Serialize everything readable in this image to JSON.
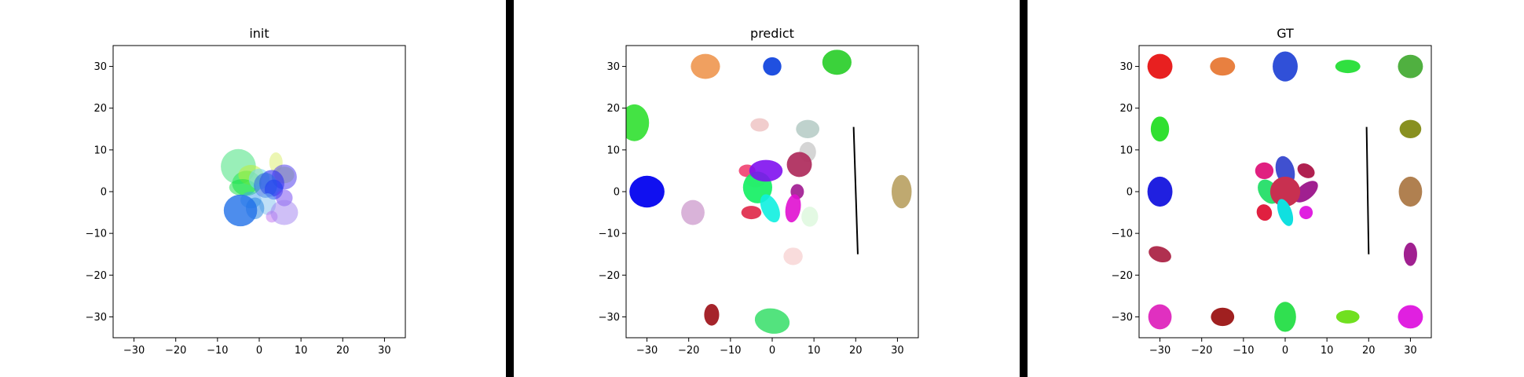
{
  "figure": {
    "separator_color": "#000000"
  },
  "chart_data": [
    {
      "type": "scatter",
      "title": "init",
      "xlim": [
        -35,
        35
      ],
      "ylim": [
        -35,
        35
      ],
      "xticks": [
        -30,
        -20,
        -10,
        0,
        10,
        20,
        30
      ],
      "yticks": [
        -30,
        -20,
        -10,
        0,
        10,
        20,
        30
      ],
      "grid": false,
      "ellipses": [
        {
          "cx": -5,
          "cy": 6,
          "rx": 4.2,
          "ry": 4.2,
          "angle": 0,
          "color": "#6ee89a",
          "opacity": 0.7
        },
        {
          "cx": -3,
          "cy": 2,
          "rx": 3.5,
          "ry": 3,
          "angle": 0,
          "color": "#2ee85a",
          "opacity": 0.6
        },
        {
          "cx": -2,
          "cy": 4,
          "rx": 3,
          "ry": 2.4,
          "angle": 0,
          "color": "#c0f030",
          "opacity": 0.5
        },
        {
          "cx": -4,
          "cy": 1,
          "rx": 3.2,
          "ry": 2,
          "angle": 0,
          "color": "#10e040",
          "opacity": 0.5
        },
        {
          "cx": 0,
          "cy": 3,
          "rx": 2.5,
          "ry": 2.5,
          "angle": 0,
          "color": "#7ad8f0",
          "opacity": 0.6
        },
        {
          "cx": 4,
          "cy": 7,
          "rx": 1.6,
          "ry": 2.4,
          "angle": 0,
          "color": "#e0f080",
          "opacity": 0.6
        },
        {
          "cx": 6,
          "cy": 4,
          "rx": 2.4,
          "ry": 2,
          "angle": 0,
          "color": "#c0f060",
          "opacity": 0.6
        },
        {
          "cx": 6,
          "cy": 3.5,
          "rx": 3,
          "ry": 3,
          "angle": 0,
          "color": "#6050f0",
          "opacity": 0.6
        },
        {
          "cx": 3,
          "cy": 2,
          "rx": 3,
          "ry": 3.2,
          "angle": 0,
          "color": "#3030f0",
          "opacity": 0.6
        },
        {
          "cx": 1.5,
          "cy": 1.5,
          "rx": 2.8,
          "ry": 3,
          "angle": 0,
          "color": "#3070e0",
          "opacity": 0.6
        },
        {
          "cx": 3.5,
          "cy": 0.5,
          "rx": 2.2,
          "ry": 2.4,
          "angle": 0,
          "color": "#2040f0",
          "opacity": 0.6
        },
        {
          "cx": 6,
          "cy": -1.5,
          "rx": 2,
          "ry": 2,
          "angle": 0,
          "color": "#7040f0",
          "opacity": 0.5
        },
        {
          "cx": -2,
          "cy": -2,
          "rx": 2.5,
          "ry": 2,
          "angle": 0,
          "color": "#40a0f0",
          "opacity": 0.5
        },
        {
          "cx": 2,
          "cy": -3,
          "rx": 2,
          "ry": 2.6,
          "angle": 0,
          "color": "#80c0f0",
          "opacity": 0.5
        },
        {
          "cx": 3,
          "cy": -6,
          "rx": 1.4,
          "ry": 1.4,
          "angle": 0,
          "color": "#c070f0",
          "opacity": 0.5
        },
        {
          "cx": 6,
          "cy": -5,
          "rx": 3.3,
          "ry": 3,
          "angle": 0,
          "color": "#a080f0",
          "opacity": 0.5
        },
        {
          "cx": -1,
          "cy": -4,
          "rx": 2.2,
          "ry": 2.6,
          "angle": 0,
          "color": "#2080e0",
          "opacity": 0.5
        },
        {
          "cx": -4.5,
          "cy": -4.5,
          "rx": 4,
          "ry": 3.8,
          "angle": 0,
          "color": "#2070e8",
          "opacity": 0.8
        }
      ],
      "lines": []
    },
    {
      "type": "scatter",
      "title": "predict",
      "xlim": [
        -35,
        35
      ],
      "ylim": [
        -35,
        35
      ],
      "xticks": [
        -30,
        -20,
        -10,
        0,
        10,
        20,
        30
      ],
      "yticks": [
        -30,
        -20,
        -10,
        0,
        10,
        20,
        30
      ],
      "grid": false,
      "ellipses": [
        {
          "cx": -16,
          "cy": 30,
          "rx": 3.5,
          "ry": 3,
          "angle": 0,
          "color": "#f0a060",
          "opacity": 1
        },
        {
          "cx": 0,
          "cy": 30,
          "rx": 2.2,
          "ry": 2.2,
          "angle": 0,
          "color": "#2050e0",
          "opacity": 1
        },
        {
          "cx": 15.5,
          "cy": 31,
          "rx": 3.5,
          "ry": 3,
          "angle": 0,
          "color": "#30d030",
          "opacity": 0.95
        },
        {
          "cx": -33,
          "cy": 16.5,
          "rx": 3.5,
          "ry": 4.4,
          "angle": 0,
          "color": "#30e030",
          "opacity": 0.9
        },
        {
          "cx": -30,
          "cy": 0,
          "rx": 4.2,
          "ry": 3.8,
          "angle": 0,
          "color": "#1010f0",
          "opacity": 1
        },
        {
          "cx": -3,
          "cy": 16,
          "rx": 2.2,
          "ry": 1.6,
          "angle": 0,
          "color": "#f0c8c8",
          "opacity": 0.9
        },
        {
          "cx": 8.5,
          "cy": 15,
          "rx": 2.8,
          "ry": 2.2,
          "angle": 0,
          "color": "#b8cdc8",
          "opacity": 0.9
        },
        {
          "cx": 8.5,
          "cy": 9.5,
          "rx": 2,
          "ry": 2.4,
          "angle": 0,
          "color": "#d0d0d0",
          "opacity": 0.9
        },
        {
          "cx": -4,
          "cy": 3,
          "rx": 2.5,
          "ry": 2,
          "angle": 0,
          "color": "#f0e0c0",
          "opacity": 0.7
        },
        {
          "cx": 6.5,
          "cy": 6.5,
          "rx": 3,
          "ry": 3,
          "angle": 0,
          "color": "#b03060",
          "opacity": 0.95
        },
        {
          "cx": -6,
          "cy": 5,
          "rx": 2,
          "ry": 1.5,
          "angle": 0,
          "color": "#f04070",
          "opacity": 0.9
        },
        {
          "cx": -3.5,
          "cy": 1,
          "rx": 3.5,
          "ry": 3.8,
          "angle": 0,
          "color": "#10f060",
          "opacity": 0.9
        },
        {
          "cx": -1.5,
          "cy": 5,
          "rx": 4,
          "ry": 2.6,
          "angle": 0,
          "color": "#8010f0",
          "opacity": 0.9
        },
        {
          "cx": 6,
          "cy": 0,
          "rx": 1.6,
          "ry": 1.8,
          "angle": 0,
          "color": "#a01890",
          "opacity": 0.9
        },
        {
          "cx": -19,
          "cy": -5,
          "rx": 2.8,
          "ry": 3,
          "angle": 0,
          "color": "#d0a0d0",
          "opacity": 0.8
        },
        {
          "cx": -5,
          "cy": -5,
          "rx": 2.4,
          "ry": 1.6,
          "angle": 0,
          "color": "#e03050",
          "opacity": 0.95
        },
        {
          "cx": -0.5,
          "cy": -4,
          "rx": 2,
          "ry": 3.6,
          "angle": 25,
          "color": "#10f0e0",
          "opacity": 0.9
        },
        {
          "cx": 5,
          "cy": -4,
          "rx": 1.8,
          "ry": 3.4,
          "angle": -10,
          "color": "#e010d0",
          "opacity": 0.9
        },
        {
          "cx": 9,
          "cy": -6,
          "rx": 2,
          "ry": 2.4,
          "angle": 0,
          "color": "#e0f8e0",
          "opacity": 0.9
        },
        {
          "cx": 5,
          "cy": -15.5,
          "rx": 2.3,
          "ry": 2.1,
          "angle": 0,
          "color": "#f8d8d8",
          "opacity": 0.9
        },
        {
          "cx": -14.5,
          "cy": -29.5,
          "rx": 1.8,
          "ry": 2.6,
          "angle": 0,
          "color": "#a01820",
          "opacity": 0.95
        },
        {
          "cx": 0,
          "cy": -31,
          "rx": 4.2,
          "ry": 3,
          "angle": -10,
          "color": "#40e070",
          "opacity": 0.9
        },
        {
          "cx": 31,
          "cy": 0,
          "rx": 2.4,
          "ry": 4,
          "angle": 0,
          "color": "#b8a060",
          "opacity": 0.9
        }
      ],
      "lines": [
        {
          "x": [
            19.5,
            20.5
          ],
          "y": [
            15.5,
            -15
          ],
          "color": "#000000"
        }
      ]
    },
    {
      "type": "scatter",
      "title": "GT",
      "xlim": [
        -35,
        35
      ],
      "ylim": [
        -35,
        35
      ],
      "xticks": [
        -30,
        -20,
        -10,
        0,
        10,
        20,
        30
      ],
      "yticks": [
        -30,
        -20,
        -10,
        0,
        10,
        20,
        30
      ],
      "grid": false,
      "ellipses": [
        {
          "cx": -30,
          "cy": 30,
          "rx": 3,
          "ry": 3,
          "angle": 0,
          "color": "#e82020",
          "opacity": 1
        },
        {
          "cx": -15,
          "cy": 30,
          "rx": 3,
          "ry": 2.2,
          "angle": 0,
          "color": "#e88040",
          "opacity": 1
        },
        {
          "cx": 0,
          "cy": 30,
          "rx": 3,
          "ry": 3.6,
          "angle": 0,
          "color": "#3050d8",
          "opacity": 1
        },
        {
          "cx": 15,
          "cy": 30,
          "rx": 3,
          "ry": 1.6,
          "angle": 0,
          "color": "#30e040",
          "opacity": 1
        },
        {
          "cx": 30,
          "cy": 30,
          "rx": 3,
          "ry": 2.8,
          "angle": 0,
          "color": "#50b040",
          "opacity": 1
        },
        {
          "cx": -30,
          "cy": 15,
          "rx": 2.2,
          "ry": 3,
          "angle": 0,
          "color": "#30e030",
          "opacity": 1
        },
        {
          "cx": 30,
          "cy": 15,
          "rx": 2.6,
          "ry": 2.2,
          "angle": 0,
          "color": "#889020",
          "opacity": 1
        },
        {
          "cx": -30,
          "cy": 0,
          "rx": 3,
          "ry": 3.6,
          "angle": 0,
          "color": "#2020e0",
          "opacity": 1
        },
        {
          "cx": 30,
          "cy": 0,
          "rx": 2.8,
          "ry": 3.6,
          "angle": 0,
          "color": "#b08050",
          "opacity": 1
        },
        {
          "cx": -30,
          "cy": -15,
          "rx": 2.8,
          "ry": 1.8,
          "angle": -20,
          "color": "#b03050",
          "opacity": 1
        },
        {
          "cx": 30,
          "cy": -15,
          "rx": 1.6,
          "ry": 2.8,
          "angle": 0,
          "color": "#a02090",
          "opacity": 1
        },
        {
          "cx": -30,
          "cy": -30,
          "rx": 2.8,
          "ry": 3,
          "angle": 0,
          "color": "#e030c0",
          "opacity": 1
        },
        {
          "cx": -15,
          "cy": -30,
          "rx": 2.8,
          "ry": 2.2,
          "angle": 0,
          "color": "#a02020",
          "opacity": 1
        },
        {
          "cx": 0,
          "cy": -30,
          "rx": 2.6,
          "ry": 3.6,
          "angle": 0,
          "color": "#30e050",
          "opacity": 1
        },
        {
          "cx": 15,
          "cy": -30,
          "rx": 2.8,
          "ry": 1.6,
          "angle": 0,
          "color": "#70e020",
          "opacity": 1
        },
        {
          "cx": 30,
          "cy": -30,
          "rx": 3,
          "ry": 2.8,
          "angle": 0,
          "color": "#e020e0",
          "opacity": 1
        },
        {
          "cx": -5,
          "cy": 5,
          "rx": 2.2,
          "ry": 2,
          "angle": 0,
          "color": "#e02080",
          "opacity": 1
        },
        {
          "cx": 0,
          "cy": 5,
          "rx": 2.2,
          "ry": 3.6,
          "angle": 15,
          "color": "#4050d0",
          "opacity": 1
        },
        {
          "cx": 5,
          "cy": 5,
          "rx": 2.2,
          "ry": 1.6,
          "angle": -30,
          "color": "#b02050",
          "opacity": 1
        },
        {
          "cx": -4,
          "cy": 0,
          "rx": 2.2,
          "ry": 3.2,
          "angle": 35,
          "color": "#30e070",
          "opacity": 1
        },
        {
          "cx": 5,
          "cy": 0,
          "rx": 1.8,
          "ry": 3.4,
          "angle": -50,
          "color": "#a02090",
          "opacity": 1
        },
        {
          "cx": 0,
          "cy": 0,
          "rx": 3.6,
          "ry": 3.6,
          "angle": 0,
          "color": "#c83050",
          "opacity": 1
        },
        {
          "cx": -5,
          "cy": -5,
          "rx": 1.8,
          "ry": 2,
          "angle": 25,
          "color": "#e02040",
          "opacity": 1
        },
        {
          "cx": 0,
          "cy": -5,
          "rx": 1.6,
          "ry": 3.4,
          "angle": 20,
          "color": "#10e0e0",
          "opacity": 1
        },
        {
          "cx": 5,
          "cy": -5,
          "rx": 1.6,
          "ry": 1.6,
          "angle": 0,
          "color": "#e020e0",
          "opacity": 1
        }
      ],
      "lines": [
        {
          "x": [
            19.5,
            20
          ],
          "y": [
            15.5,
            -15
          ],
          "color": "#000000"
        }
      ]
    }
  ]
}
